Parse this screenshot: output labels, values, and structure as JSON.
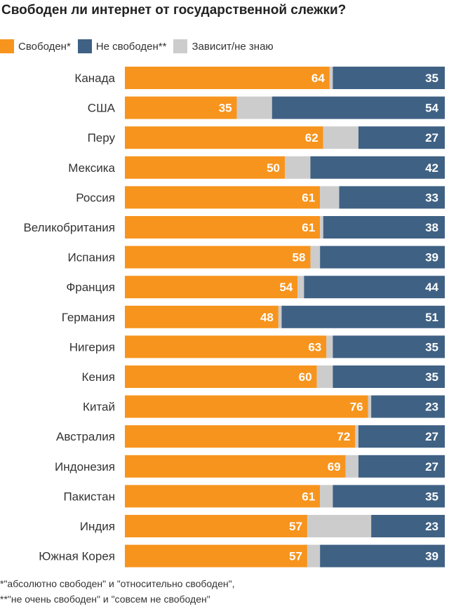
{
  "chart_data": {
    "type": "bar",
    "orientation": "horizontal",
    "stacked": true,
    "title": "Свободен ли интернет от государственной слежки?",
    "categories": [
      "Канада",
      "США",
      "Перу",
      "Мексика",
      "Россия",
      "Великобритания",
      "Испания",
      "Франция",
      "Германия",
      "Нигерия",
      "Кения",
      "Китай",
      "Австралия",
      "Индонезия",
      "Пакистан",
      "Индия",
      "Южная Корея"
    ],
    "series": [
      {
        "name": "Свободен*",
        "color": "#f7941d",
        "values": [
          64,
          35,
          62,
          50,
          61,
          61,
          58,
          54,
          48,
          63,
          60,
          76,
          72,
          69,
          61,
          57,
          57
        ]
      },
      {
        "name": "Зависит/не знаю",
        "color": "#cccccc",
        "values": [
          1,
          11,
          11,
          8,
          6,
          1,
          3,
          2,
          1,
          2,
          5,
          1,
          1,
          4,
          4,
          20,
          4
        ]
      },
      {
        "name": "Не свободен**",
        "color": "#3f6184",
        "values": [
          35,
          54,
          27,
          42,
          33,
          38,
          39,
          44,
          51,
          35,
          35,
          23,
          27,
          27,
          35,
          23,
          39
        ]
      }
    ],
    "legend": [
      "Свободен*",
      "Не свободен**",
      "Зависит/не знаю"
    ],
    "legend_position": "top-left",
    "xlim": [
      0,
      100
    ],
    "footnotes": [
      "*\"абсолютно свободен\" и \"относительно свободен\",",
      "**\"не очень свободен\" и \"совсем не свободен\""
    ]
  }
}
